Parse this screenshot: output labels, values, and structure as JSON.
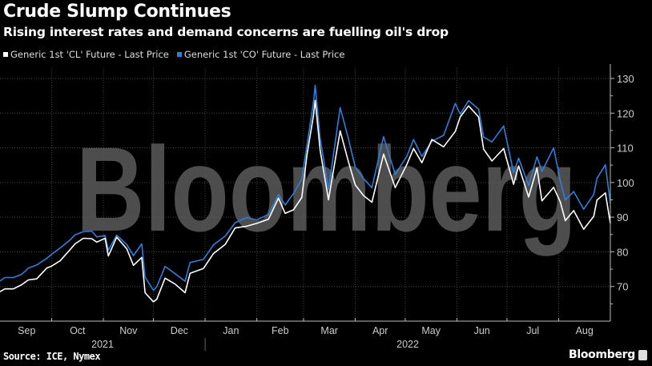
{
  "header": {
    "title": "Crude Slump Continues",
    "subtitle": "Rising interest rates and demand concerns are fuelling oil's drop"
  },
  "footer": {
    "source": "Source: ICE, Nymex",
    "brand": "Bloomberg"
  },
  "watermark": "Bloomberg",
  "chart_data": {
    "type": "line",
    "title": "Crude Slump Continues",
    "subtitle": "Rising interest rates and demand concerns are fuelling oil's drop",
    "xlabel": "",
    "ylabel": "",
    "ylim": [
      60,
      133
    ],
    "yticks": [
      70,
      80,
      90,
      100,
      110,
      120,
      130
    ],
    "xlim": [
      "2021-08-31",
      "2022-09-01"
    ],
    "xtick_labels": [
      "Sep",
      "Oct",
      "Nov",
      "Dec",
      "Jan",
      "Feb",
      "Mar",
      "Apr",
      "May",
      "Jun",
      "Jul",
      "Aug"
    ],
    "year_labels": [
      "2021",
      "2022"
    ],
    "grid": true,
    "legend_position": "top-left",
    "y_axis_side": "right",
    "x": [
      "2021-08-31",
      "2021-09-03",
      "2021-09-08",
      "2021-09-13",
      "2021-09-17",
      "2021-09-22",
      "2021-09-28",
      "2021-10-01",
      "2021-10-06",
      "2021-10-12",
      "2021-10-15",
      "2021-10-20",
      "2021-10-25",
      "2021-10-28",
      "2021-11-02",
      "2021-11-04",
      "2021-11-09",
      "2021-11-15",
      "2021-11-19",
      "2021-11-24",
      "2021-11-26",
      "2021-12-01",
      "2021-12-03",
      "2021-12-08",
      "2021-12-14",
      "2021-12-20",
      "2021-12-23",
      "2021-12-31",
      "2022-01-06",
      "2022-01-13",
      "2022-01-19",
      "2022-01-26",
      "2022-02-01",
      "2022-02-08",
      "2022-02-14",
      "2022-02-18",
      "2022-02-23",
      "2022-02-28",
      "2022-03-03",
      "2022-03-07",
      "2022-03-08",
      "2022-03-11",
      "2022-03-16",
      "2022-03-23",
      "2022-03-28",
      "2022-04-01",
      "2022-04-06",
      "2022-04-11",
      "2022-04-18",
      "2022-04-25",
      "2022-05-02",
      "2022-05-06",
      "2022-05-11",
      "2022-05-17",
      "2022-05-24",
      "2022-05-31",
      "2022-06-03",
      "2022-06-08",
      "2022-06-14",
      "2022-06-17",
      "2022-06-22",
      "2022-06-29",
      "2022-07-05",
      "2022-07-08",
      "2022-07-14",
      "2022-07-19",
      "2022-07-22",
      "2022-07-29",
      "2022-08-02",
      "2022-08-05",
      "2022-08-10",
      "2022-08-16",
      "2022-08-22",
      "2022-08-24",
      "2022-08-29",
      "2022-09-01"
    ],
    "series": [
      {
        "name": "Generic 1st 'CO' Future - Last Price",
        "color": "#2f7fd8",
        "values": [
          71.6,
          72.6,
          72.6,
          73.5,
          75.3,
          76.2,
          78.1,
          79.3,
          81.1,
          83.4,
          84.9,
          85.8,
          86.0,
          84.3,
          84.7,
          80.5,
          84.8,
          82.1,
          78.9,
          82.3,
          72.7,
          68.9,
          69.9,
          75.8,
          73.7,
          71.5,
          76.9,
          77.8,
          82.0,
          84.5,
          88.4,
          89.9,
          89.2,
          90.8,
          96.5,
          93.5,
          96.8,
          101.0,
          110.5,
          123.2,
          128.0,
          112.7,
          98.0,
          121.6,
          112.5,
          104.4,
          101.1,
          98.5,
          113.2,
          102.3,
          107.6,
          112.4,
          107.5,
          111.9,
          113.6,
          122.8,
          119.7,
          123.6,
          121.2,
          113.1,
          111.7,
          116.3,
          102.8,
          107.0,
          99.1,
          107.4,
          103.2,
          110.0,
          100.5,
          94.9,
          97.4,
          92.3,
          96.5,
          101.2,
          105.1,
          94.0
        ]
      },
      {
        "name": "Generic 1st 'CL' Future - Last Price",
        "color": "#ffffff",
        "values": [
          68.5,
          69.3,
          69.3,
          70.5,
          71.9,
          72.2,
          75.3,
          75.9,
          77.4,
          80.6,
          82.3,
          83.9,
          83.8,
          82.8,
          83.9,
          78.8,
          84.2,
          80.9,
          76.1,
          78.4,
          68.2,
          65.6,
          66.3,
          72.4,
          70.7,
          68.2,
          73.8,
          75.2,
          79.5,
          82.1,
          86.9,
          87.4,
          88.2,
          89.4,
          95.5,
          91.1,
          92.1,
          95.7,
          107.7,
          119.4,
          123.7,
          109.3,
          95.0,
          114.9,
          105.9,
          99.3,
          96.2,
          94.3,
          108.2,
          98.5,
          105.2,
          109.8,
          105.7,
          112.4,
          110.3,
          114.7,
          118.9,
          122.1,
          118.9,
          109.6,
          106.2,
          109.8,
          99.5,
          104.8,
          95.8,
          104.2,
          94.7,
          98.6,
          94.4,
          89.0,
          91.9,
          86.5,
          90.2,
          94.9,
          97.0,
          88.2
        ]
      }
    ]
  }
}
